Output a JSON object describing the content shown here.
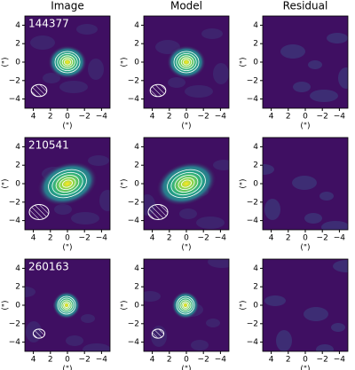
{
  "chart_data": {
    "type": "image-grid",
    "columns": [
      "Image",
      "Model",
      "Residual"
    ],
    "rows": [
      "144377",
      "210541",
      "260163"
    ],
    "xlabel": "(\")",
    "ylabel": "(\")",
    "xlim": [
      5,
      -5
    ],
    "ylim": [
      -5,
      5
    ],
    "xticks": [
      4,
      2,
      0,
      {
        "value": -2,
        "label": "−2"
      },
      {
        "value": -4,
        "label": "−4"
      }
    ],
    "yticks": [
      4,
      2,
      0,
      {
        "value": -2,
        "label": "−2"
      },
      {
        "value": -4,
        "label": "−4"
      }
    ]
  }
}
